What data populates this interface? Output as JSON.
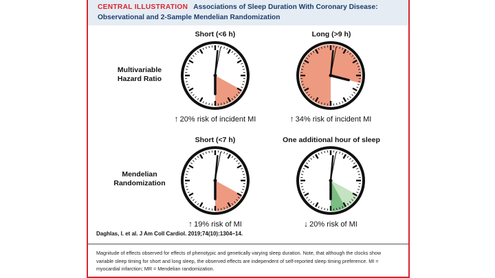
{
  "header": {
    "kicker": "CENTRAL ILLUSTRATION",
    "title": "Associations of Sleep Duration With Coronary Disease:",
    "subtitle": "Observational and 2-Sample Mendelian Randomization"
  },
  "rows": [
    {
      "label_line1": "Multivariable",
      "label_line2": "Hazard Ratio"
    },
    {
      "label_line1": "Mendelian",
      "label_line2": "Randomization"
    }
  ],
  "panels": [
    {
      "heading": "Short (<6 h)",
      "arrow": "↑",
      "result": "20% risk of incident MI",
      "color": "#ee9a80",
      "sector_from": 0.33,
      "sector_to": 0.5,
      "light_color": null
    },
    {
      "heading": "Long (>9 h)",
      "arrow": "↑",
      "result": "34% risk of incident MI",
      "color": "#ee9a80",
      "sector_from": 0.5,
      "sector_to": 0.29,
      "light_color": null
    },
    {
      "heading": "Short (<7 h)",
      "arrow": "↑",
      "result": "19% risk of MI",
      "color": "#ee9a80",
      "sector_from": 0.33,
      "sector_to": 0.5,
      "light_color": null
    },
    {
      "heading": "One additional hour of sleep",
      "arrow": "↓",
      "result": "20% risk of MI",
      "color": "#7cbd84",
      "sector_from": 0.33,
      "sector_to": 0.5,
      "light_color": "#c3e3c1",
      "light_from": 0.33,
      "light_to": 0.42
    }
  ],
  "citation": "Daghlas, I. et al. J Am Coll Cardiol. 2019;74(10):1304–14.",
  "caption": "Magnitude of effects observed for effects of phenotypic and genetically varying sleep duration. Note, that although the clocks show variable sleep timing for short and long sleep, the observed effects are independent of self-reported sleep timing preference. MI = myocardial infarction; MR = Mendelian randomization."
}
